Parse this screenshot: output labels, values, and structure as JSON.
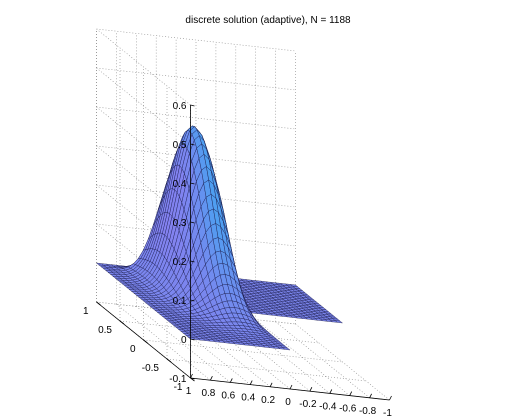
{
  "chart_data": {
    "type": "surface",
    "title": "discrete solution (adaptive), N = 1188",
    "domain": "L-shaped",
    "grid": true,
    "x_ticks": [
      "1",
      "0.8",
      "0.6",
      "0.4",
      "0.2",
      "0",
      "-0.2",
      "-0.4",
      "-0.6",
      "-0.8",
      "-1"
    ],
    "y_ticks": [
      "-1",
      "-0.5",
      "0",
      "0.5",
      "1"
    ],
    "z_ticks": [
      "-0.1",
      "0",
      "0.1",
      "0.2",
      "0.3",
      "0.4",
      "0.5",
      "0.6"
    ],
    "xlim": [
      -1,
      1
    ],
    "ylim": [
      -1,
      1
    ],
    "zlim": [
      -0.1,
      0.6
    ],
    "peak": {
      "x": 0.25,
      "y": 0.5,
      "z": 0.42
    },
    "colors": {
      "surface_low": "#7b86ee",
      "surface_mid": "#4f9ef0",
      "surface_high": "#d157f0",
      "mesh": "#1a1a4a",
      "grid": "#888888"
    }
  }
}
